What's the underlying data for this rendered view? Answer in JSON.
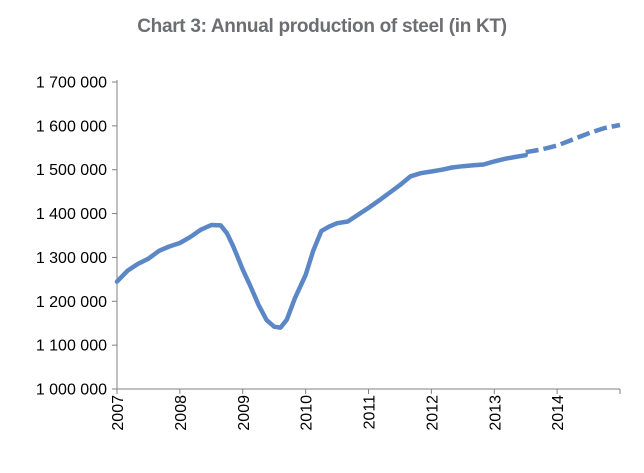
{
  "chart_data": {
    "type": "line",
    "title": "Chart 3: Annual production of steel (in KT)",
    "xlabel": "",
    "ylabel": "",
    "ylim": [
      1000000,
      1700000
    ],
    "xlim": [
      2007.0,
      2015.0
    ],
    "grid": false,
    "legend": "none",
    "y_ticks": [
      "1 000 000",
      "1 100 000",
      "1 200 000",
      "1 300 000",
      "1 400 000",
      "1 500 000",
      "1 600 000",
      "1 700 000"
    ],
    "y_tick_values": [
      1000000,
      1100000,
      1200000,
      1300000,
      1400000,
      1500000,
      1600000,
      1700000
    ],
    "x_ticks": [
      "2007",
      "2008",
      "2009",
      "2010",
      "2011",
      "2012",
      "2013",
      "2014"
    ],
    "x_tick_values": [
      2007,
      2008,
      2009,
      2010,
      2011,
      2012,
      2013,
      2014
    ],
    "series": [
      {
        "style": "solid",
        "color": "#5b87c6",
        "x": [
          2007.0,
          2007.17,
          2007.33,
          2007.5,
          2007.67,
          2007.83,
          2008.0,
          2008.17,
          2008.33,
          2008.5,
          2008.65,
          2008.75,
          2008.85,
          2009.0,
          2009.12,
          2009.25,
          2009.38,
          2009.5,
          2009.6,
          2009.7,
          2009.83,
          2010.0,
          2010.12,
          2010.25,
          2010.37,
          2010.5,
          2010.67,
          2010.83,
          2011.0,
          2011.17,
          2011.33,
          2011.5,
          2011.67,
          2011.83,
          2012.0,
          2012.17,
          2012.33,
          2012.5,
          2012.67,
          2012.83,
          2013.0,
          2013.17,
          2013.33,
          2013.5
        ],
        "values": [
          1245000,
          1270000,
          1285000,
          1297000,
          1315000,
          1325000,
          1333000,
          1347000,
          1363000,
          1374000,
          1373000,
          1355000,
          1325000,
          1272000,
          1235000,
          1192000,
          1157000,
          1142000,
          1140000,
          1158000,
          1207000,
          1260000,
          1315000,
          1360000,
          1370000,
          1378000,
          1382000,
          1397000,
          1413000,
          1430000,
          1447000,
          1465000,
          1485000,
          1492000,
          1496000,
          1500000,
          1505000,
          1508000,
          1510000,
          1512000,
          1519000,
          1525000,
          1529000,
          1533000
        ]
      },
      {
        "style": "dashed",
        "color": "#5b87c6",
        "x": [
          2013.5,
          2013.75,
          2014.0,
          2014.25,
          2014.5,
          2014.75,
          2015.0
        ],
        "values": [
          1540000,
          1546000,
          1555000,
          1569000,
          1583000,
          1595000,
          1602000
        ]
      }
    ]
  }
}
